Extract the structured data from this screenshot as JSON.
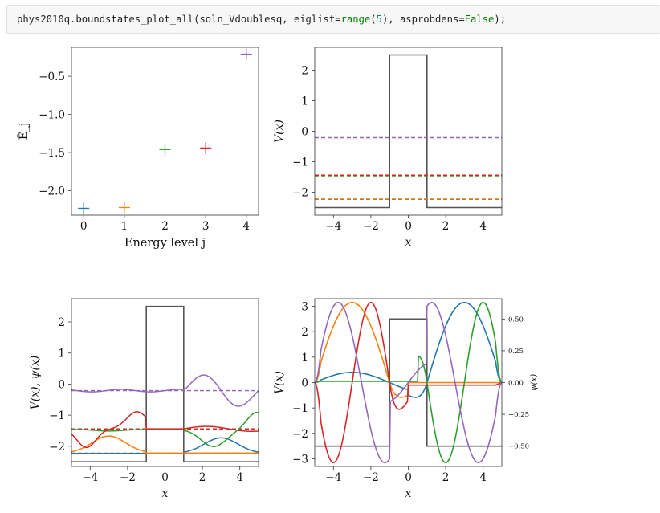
{
  "cell": {
    "code_prefix": "phys2010q.boundstates_plot_all(soln_Vdoublesq, eiglist=",
    "code_range": "range",
    "code_paren_open": "(",
    "code_num": "5",
    "code_mid": "), asprobdens=",
    "code_false": "False",
    "code_suffix": ");"
  },
  "colors": {
    "c0": "#1f77b4",
    "c1": "#ff7f0e",
    "c2": "#2ca02c",
    "c3": "#d62728",
    "c4": "#9467bd",
    "potential": "#555555"
  },
  "chart_data": [
    {
      "type": "scatter",
      "title": "",
      "xlabel": "Energy level j",
      "ylabel": "Ē_j",
      "xlim": [
        -0.3,
        4.3
      ],
      "ylim": [
        -2.32,
        -0.12
      ],
      "xticks": [
        "0",
        "1",
        "2",
        "3",
        "4"
      ],
      "yticks": [
        "−0.5",
        "−1.0",
        "−1.5",
        "−2.0"
      ],
      "ytick_values": [
        -0.5,
        -1.0,
        -1.5,
        -2.0
      ],
      "marker": "+",
      "x": [
        0,
        1,
        2,
        3,
        4
      ],
      "y": [
        -2.23,
        -2.22,
        -1.46,
        -1.44,
        -0.21
      ]
    },
    {
      "type": "line",
      "title": "",
      "xlabel": "x",
      "ylabel": "V(x)",
      "xlim": [
        -5,
        5
      ],
      "ylim": [
        -2.75,
        2.75
      ],
      "xticks": [
        "−4",
        "−2",
        "0",
        "2",
        "4"
      ],
      "yticks": [
        "2",
        "1",
        "0",
        "−1",
        "−2"
      ],
      "potential": {
        "x": [
          -5,
          -1,
          -1,
          1,
          1,
          5
        ],
        "y": [
          -2.5,
          -2.5,
          2.5,
          2.5,
          -2.5,
          -2.5
        ]
      },
      "energy_levels": [
        -2.23,
        -2.22,
        -1.46,
        -1.44,
        -0.21
      ]
    },
    {
      "type": "line",
      "title": "",
      "xlabel": "x",
      "ylabel": "V(x), ψ(x)",
      "xlim": [
        -5,
        5
      ],
      "ylim": [
        -2.65,
        2.75
      ],
      "xticks": [
        "−4",
        "−2",
        "0",
        "2",
        "4"
      ],
      "yticks": [
        "2",
        "1",
        "0",
        "−1",
        "−2"
      ],
      "potential": {
        "x": [
          -5,
          -1,
          -1,
          1,
          1,
          5
        ],
        "y": [
          -2.5,
          -2.5,
          2.5,
          2.5,
          -2.5,
          -2.5
        ]
      },
      "energy_levels": [
        -2.23,
        -2.22,
        -1.46,
        -1.44,
        -0.21
      ],
      "wavefunction_scale": 0.6
    },
    {
      "type": "line",
      "title": "",
      "xlabel": "x",
      "ylabel": "V(x)",
      "ylabel_right": "ψ(x)",
      "xlim": [
        -5,
        5
      ],
      "ylim": [
        -3.3,
        3.3
      ],
      "y2lim": [
        -0.66,
        0.66
      ],
      "xticks": [
        "−4",
        "−2",
        "0",
        "2",
        "4"
      ],
      "yticks": [
        "3",
        "2",
        "1",
        "0",
        "−1",
        "−2",
        "−3"
      ],
      "y2ticks": [
        "0.50",
        "0.25",
        "0.00",
        "−0.25",
        "−0.50"
      ],
      "y2tick_values": [
        0.5,
        0.25,
        0.0,
        -0.25,
        -0.5
      ],
      "potential": {
        "x": [
          -5,
          -1,
          -1,
          1,
          1,
          5
        ],
        "y": [
          -2.5,
          -2.5,
          2.5,
          2.5,
          -2.5,
          -2.5
        ]
      }
    }
  ]
}
